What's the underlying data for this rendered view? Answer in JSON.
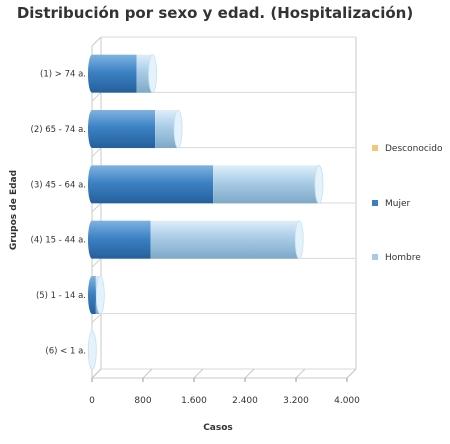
{
  "chart_data": {
    "type": "bar",
    "orientation": "horizontal",
    "stacked": true,
    "title": "Distribución por sexo y edad. (Hospitalización)",
    "xlabel": "Casos",
    "ylabel": "Grupos de Edad",
    "categories": [
      "(1) > 74 a.",
      "(2) 65 - 74 a.",
      "(3) 45 - 64 a.",
      "(4) 15 - 44 a.",
      "(5) 1 - 14 a.",
      "(6) < 1 a."
    ],
    "series": [
      {
        "name": "Mujer",
        "color": "#3a7fc0",
        "values": [
          700,
          990,
          1900,
          920,
          60,
          0
        ]
      },
      {
        "name": "Hombre",
        "color": "#a6cbe8",
        "values": [
          250,
          360,
          1660,
          2330,
          70,
          5
        ]
      },
      {
        "name": "Desconocido",
        "color": "#f0c878",
        "values": [
          0,
          0,
          0,
          0,
          0,
          0
        ]
      }
    ],
    "xlim": [
      0,
      4000
    ],
    "xticks": [
      "0",
      "800",
      "1.600",
      "2.400",
      "3.200",
      "4.000"
    ],
    "xtick_values": [
      0,
      800,
      1600,
      2400,
      3200,
      4000
    ],
    "legend": [
      "Desconocido",
      "Mujer",
      "Hombre"
    ],
    "legend_position": "right",
    "grid": true
  }
}
